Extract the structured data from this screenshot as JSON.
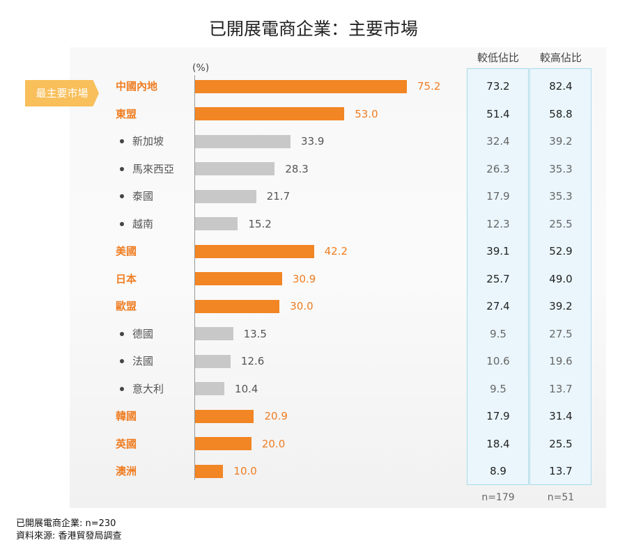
{
  "chart_data": {
    "type": "bar",
    "title": "已開展電商企業：主要市場",
    "unit": "(%)",
    "highlight_tag": "最主要市場",
    "categories": [
      "中國內地",
      "東盟",
      "新加坡",
      "馬來西亞",
      "泰國",
      "越南",
      "美國",
      "日本",
      "歐盟",
      "德國",
      "法國",
      "意大利",
      "韓國",
      "英國",
      "澳洲"
    ],
    "is_sub": [
      false,
      false,
      true,
      true,
      true,
      true,
      false,
      false,
      false,
      true,
      true,
      true,
      false,
      false,
      false
    ],
    "values": [
      75.2,
      53.0,
      33.9,
      28.3,
      21.7,
      15.2,
      42.2,
      30.9,
      30.0,
      13.5,
      12.6,
      10.4,
      20.9,
      20.0,
      10.0
    ],
    "xlim": [
      0,
      100
    ],
    "colors": {
      "main": "#f28524",
      "sub": "#c8c8c8",
      "main_text": "#ef7d22",
      "sub_text": "#555555"
    },
    "table": {
      "columns": [
        "較低佔比",
        "較高佔比"
      ],
      "low": [
        73.2,
        51.4,
        32.4,
        26.3,
        17.9,
        12.3,
        39.1,
        25.7,
        27.4,
        9.5,
        10.6,
        9.5,
        17.9,
        18.4,
        8.9
      ],
      "high": [
        82.4,
        58.8,
        39.2,
        35.3,
        35.3,
        25.5,
        52.9,
        49.0,
        39.2,
        27.5,
        19.6,
        13.7,
        31.4,
        25.5,
        13.7
      ],
      "n": [
        "n=179",
        "n=51"
      ]
    }
  },
  "footnote": [
    "已開展電商企業:  n=230",
    "資料來源: 香港貿發局調查"
  ]
}
